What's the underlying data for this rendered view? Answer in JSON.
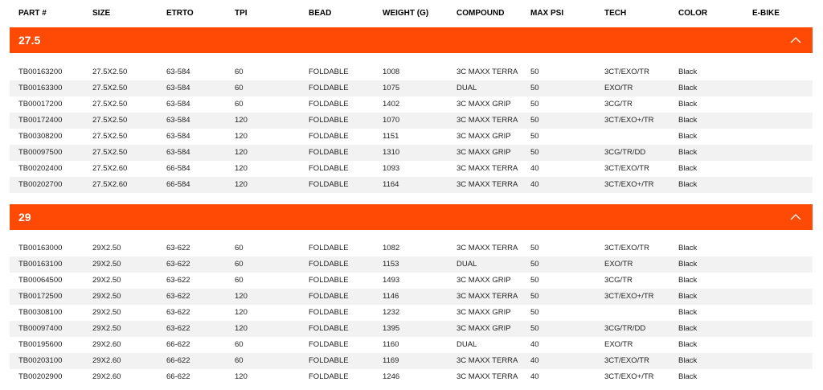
{
  "columns": [
    "PART #",
    "SIZE",
    "ETRTO",
    "TPI",
    "BEAD",
    "WEIGHT (G)",
    "COMPOUND",
    "MAX PSI",
    "TECH",
    "COLOR",
    "E-BIKE"
  ],
  "accent_color": "#ff4a05",
  "sections": [
    {
      "title": "27.5",
      "toggle_icon": "chevron-up-icon",
      "rows": [
        [
          "TB00163200",
          "27.5X2.50",
          "63-584",
          "60",
          "FOLDABLE",
          "1008",
          "3C MAXX TERRA",
          "50",
          "3CT/EXO/TR",
          "Black",
          ""
        ],
        [
          "TB00163300",
          "27.5X2.50",
          "63-584",
          "60",
          "FOLDABLE",
          "1075",
          "DUAL",
          "50",
          "EXO/TR",
          "Black",
          ""
        ],
        [
          "TB00017200",
          "27.5X2.50",
          "63-584",
          "60",
          "FOLDABLE",
          "1402",
          "3C MAXX GRIP",
          "50",
          "3CG/TR",
          "Black",
          ""
        ],
        [
          "TB00172400",
          "27.5X2.50",
          "63-584",
          "120",
          "FOLDABLE",
          "1070",
          "3C MAXX TERRA",
          "50",
          "3CT/EXO+/TR",
          "Black",
          ""
        ],
        [
          "TB00308200",
          "27.5X2.50",
          "63-584",
          "120",
          "FOLDABLE",
          "1151",
          "3C MAXX GRIP",
          "50",
          "",
          "Black",
          ""
        ],
        [
          "TB00097500",
          "27.5X2.50",
          "63-584",
          "120",
          "FOLDABLE",
          "1310",
          "3C MAXX GRIP",
          "50",
          "3CG/TR/DD",
          "Black",
          ""
        ],
        [
          "TB00202400",
          "27.5X2.60",
          "66-584",
          "120",
          "FOLDABLE",
          "1093",
          "3C MAXX TERRA",
          "40",
          "3CT/EXO/TR",
          "Black",
          ""
        ],
        [
          "TB00202700",
          "27.5X2.60",
          "66-584",
          "120",
          "FOLDABLE",
          "1164",
          "3C MAXX TERRA",
          "40",
          "3CT/EXO+/TR",
          "Black",
          ""
        ]
      ]
    },
    {
      "title": "29",
      "toggle_icon": "chevron-up-icon",
      "rows": [
        [
          "TB00163000",
          "29X2.50",
          "63-622",
          "60",
          "FOLDABLE",
          "1082",
          "3C MAXX TERRA",
          "50",
          "3CT/EXO/TR",
          "Black",
          ""
        ],
        [
          "TB00163100",
          "29X2.50",
          "63-622",
          "60",
          "FOLDABLE",
          "1153",
          "DUAL",
          "50",
          "EXO/TR",
          "Black",
          ""
        ],
        [
          "TB00064500",
          "29X2.50",
          "63-622",
          "60",
          "FOLDABLE",
          "1493",
          "3C MAXX GRIP",
          "50",
          "3CG/TR",
          "Black",
          ""
        ],
        [
          "TB00172500",
          "29X2.50",
          "63-622",
          "120",
          "FOLDABLE",
          "1146",
          "3C MAXX TERRA",
          "50",
          "3CT/EXO+/TR",
          "Black",
          ""
        ],
        [
          "TB00308100",
          "29X2.50",
          "63-622",
          "120",
          "FOLDABLE",
          "1232",
          "3C MAXX GRIP",
          "50",
          "",
          "Black",
          ""
        ],
        [
          "TB00097400",
          "29X2.50",
          "63-622",
          "120",
          "FOLDABLE",
          "1395",
          "3C MAXX GRIP",
          "50",
          "3CG/TR/DD",
          "Black",
          ""
        ],
        [
          "TB00195600",
          "29X2.60",
          "66-622",
          "60",
          "FOLDABLE",
          "1160",
          "DUAL",
          "40",
          "EXO/TR",
          "Black",
          ""
        ],
        [
          "TB00203100",
          "29X2.60",
          "66-622",
          "60",
          "FOLDABLE",
          "1169",
          "3C MAXX TERRA",
          "40",
          "3CT/EXO/TR",
          "Black",
          ""
        ],
        [
          "TB00202900",
          "29X2.60",
          "66-622",
          "120",
          "FOLDABLE",
          "1246",
          "3C MAXX TERRA",
          "40",
          "3CT/EXO+/TR",
          "Black",
          ""
        ]
      ]
    }
  ]
}
